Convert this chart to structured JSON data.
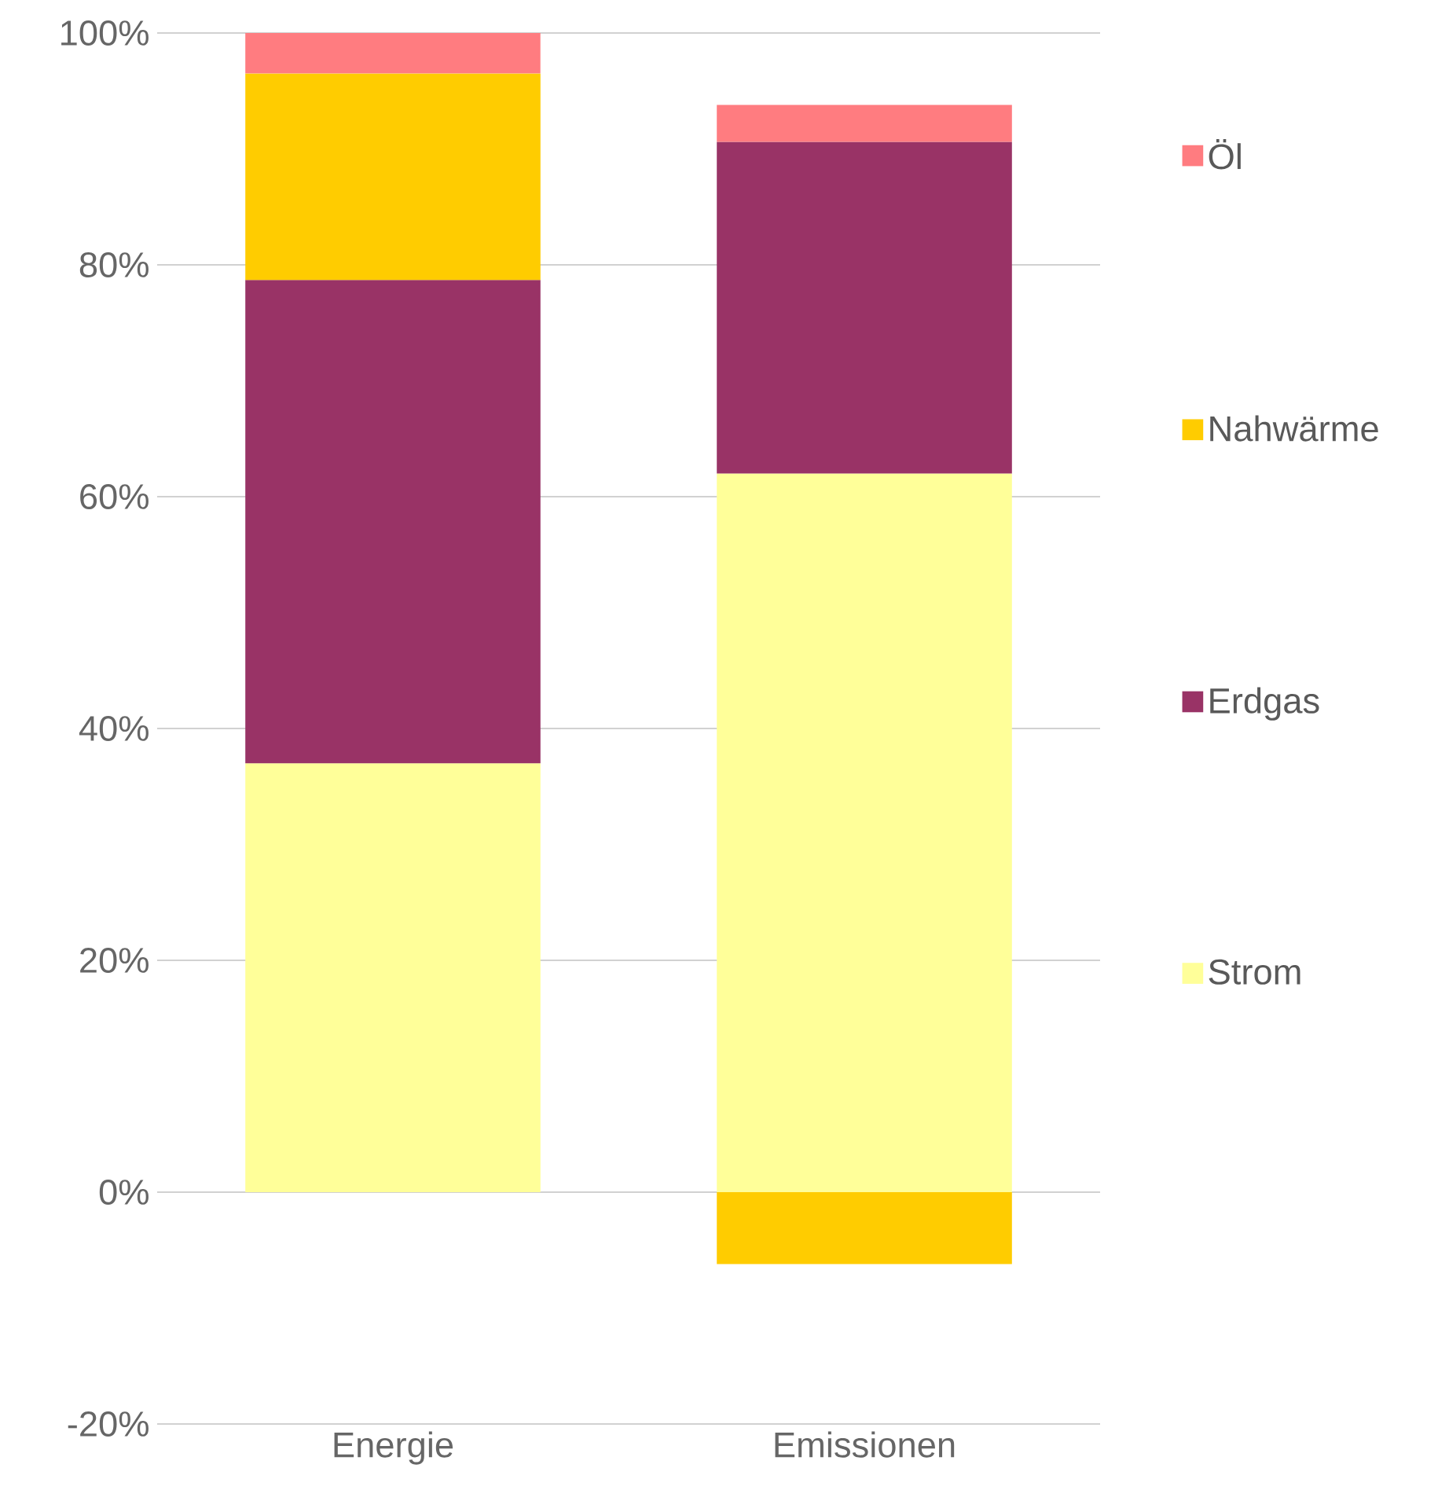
{
  "chart_data": {
    "type": "bar",
    "stacked": true,
    "categories": [
      "Energie",
      "Emissionen"
    ],
    "series": [
      {
        "name": "Strom",
        "color": "#ffff99",
        "values": [
          37.0,
          62.0
        ]
      },
      {
        "name": "Erdgas",
        "color": "#993366",
        "values": [
          41.7,
          28.6
        ]
      },
      {
        "name": "Nahwärme",
        "color": "#ffcc00",
        "values": [
          17.8,
          -6.2
        ]
      },
      {
        "name": "Öl",
        "color": "#ff7c80",
        "values": [
          3.5,
          3.2
        ]
      }
    ],
    "ylim": [
      -20,
      100
    ],
    "yticks": [
      {
        "value": -20,
        "label": "-20%"
      },
      {
        "value": 0,
        "label": "0%"
      },
      {
        "value": 20,
        "label": "20%"
      },
      {
        "value": 40,
        "label": "40%"
      },
      {
        "value": 60,
        "label": "60%"
      },
      {
        "value": 80,
        "label": "80%"
      },
      {
        "value": 100,
        "label": "100%"
      }
    ],
    "grid": "y",
    "legend": "right"
  }
}
